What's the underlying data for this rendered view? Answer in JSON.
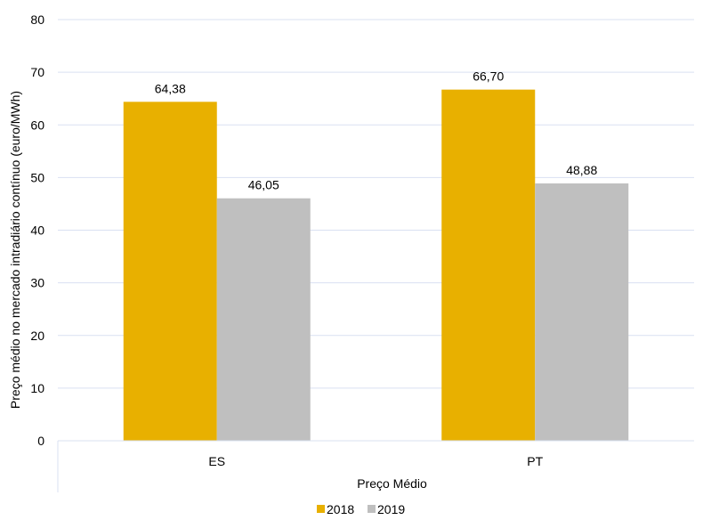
{
  "chart_data": {
    "type": "bar",
    "title": "",
    "xlabel": "Preço Médio",
    "ylabel": "Preço médio no mercado intradiário contínuo (euro/MWh)",
    "categories": [
      "ES",
      "PT"
    ],
    "series": [
      {
        "name": "2018",
        "values": [
          64.38,
          66.7
        ],
        "labels": [
          "64,38",
          "66,70"
        ],
        "color": "#E8B000"
      },
      {
        "name": "2019",
        "values": [
          46.05,
          48.88
        ],
        "labels": [
          "46,05",
          "48,88"
        ],
        "color": "#BFBFBF"
      }
    ],
    "ylim": [
      0,
      80
    ],
    "yticks": [
      0,
      10,
      20,
      30,
      40,
      50,
      60,
      70,
      80
    ],
    "grid": true,
    "legend": "bottom-center",
    "gridColor": "#D9E1F2"
  }
}
